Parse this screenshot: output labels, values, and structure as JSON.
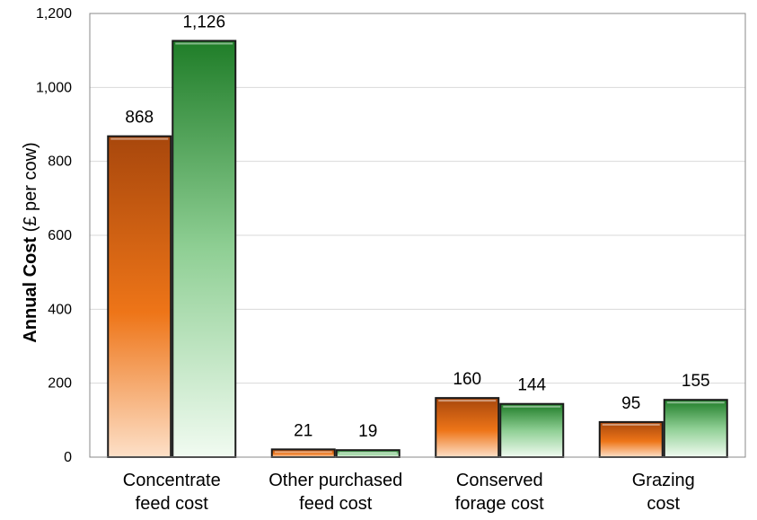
{
  "chart_data": {
    "type": "bar",
    "title": "",
    "ylabel_bold": "Annual Cost",
    "ylabel_rest": " (£ per cow)",
    "categories": [
      [
        "Concentrate",
        "feed cost"
      ],
      [
        "Other purchased",
        "feed cost"
      ],
      [
        "Conserved",
        "forage cost"
      ],
      [
        "Grazing",
        "cost"
      ]
    ],
    "series": [
      {
        "color": "#e8711a",
        "values": [
          868,
          21,
          160,
          95
        ],
        "labels": [
          "868",
          "21",
          "160",
          "95"
        ]
      },
      {
        "color": "#2f9a38",
        "values": [
          1126,
          19,
          144,
          155
        ],
        "labels": [
          "1,126",
          "19",
          "144",
          "155"
        ]
      }
    ],
    "ylim": [
      0,
      1200
    ],
    "yticks": [
      0,
      200,
      400,
      600,
      800,
      1000,
      1200
    ],
    "ytick_labels": [
      "0",
      "200",
      "400",
      "600",
      "800",
      "1,000",
      "1,200"
    ],
    "grid": true,
    "legend": "none"
  }
}
